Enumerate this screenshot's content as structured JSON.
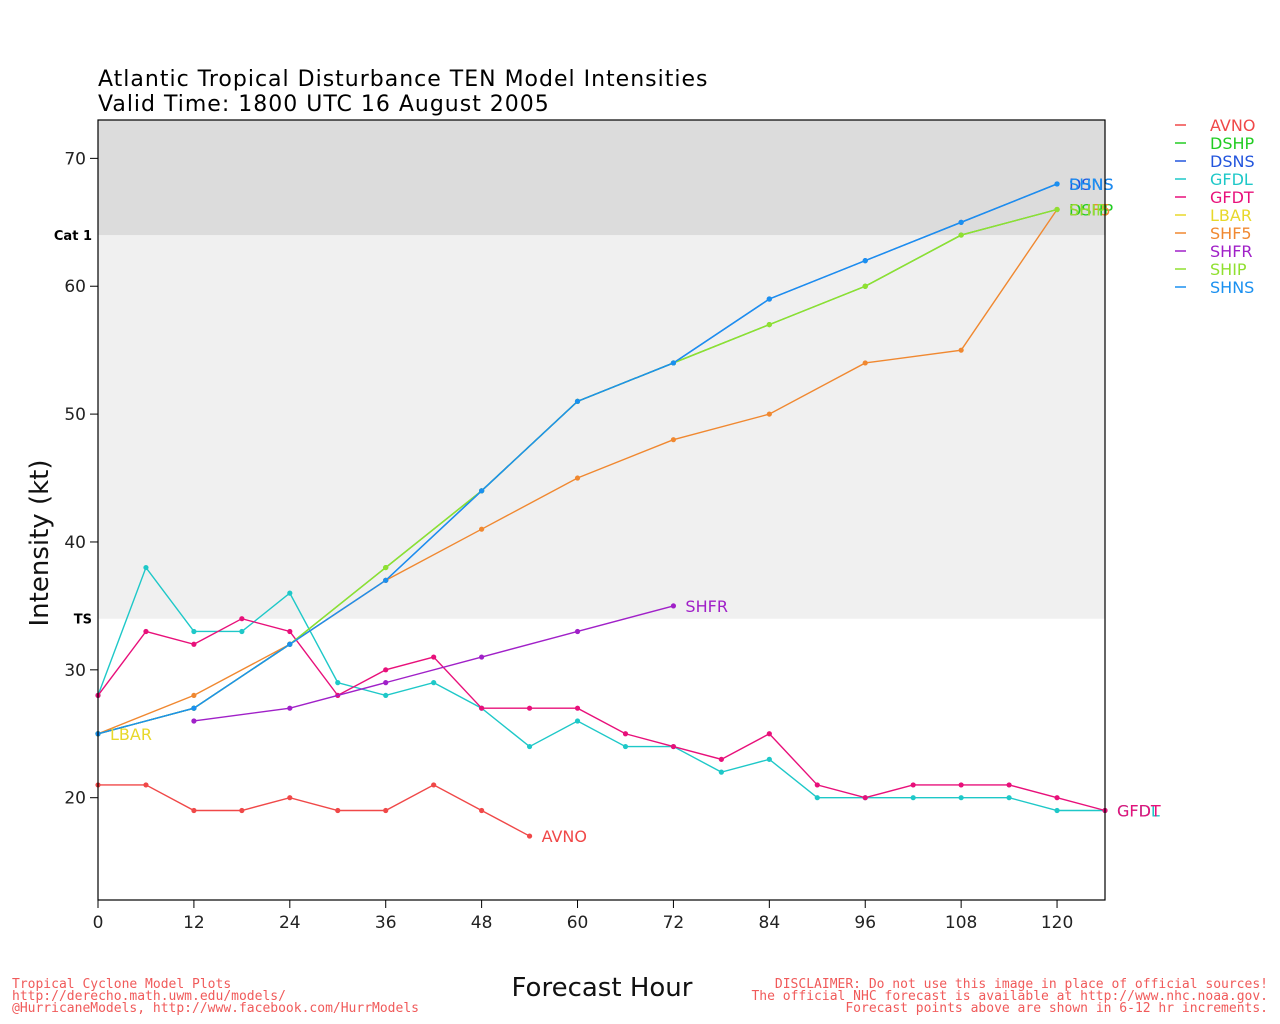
{
  "title_line1": "Atlantic Tropical Disturbance TEN Model Intensities",
  "title_line2": "Valid Time: 1800 UTC 16 August 2005",
  "footer_left": [
    "Tropical Cyclone Model Plots",
    "http://derecho.math.uwm.edu/models/",
    "@HurricaneModels, http://www.facebook.com/HurrModels"
  ],
  "footer_right": [
    "DISCLAIMER: Do not use this image in place of official sources!",
    "The official NHC forecast is available at http://www.nhc.noaa.gov.",
    "Forecast points above are shown in 6-12 hr increments."
  ],
  "colors": {
    "band_hurricane": "#dcdcdc",
    "band_ts": "#f0f0f0",
    "axis": "#000000"
  },
  "chart_data": {
    "type": "line",
    "xlabel": "Forecast Hour",
    "ylabel": "Intensity (kt)",
    "xlim": [
      0,
      126
    ],
    "ylim": [
      12,
      73
    ],
    "xticks": [
      0,
      12,
      24,
      36,
      48,
      60,
      72,
      84,
      96,
      108,
      120
    ],
    "yticks": [
      20,
      30,
      40,
      50,
      60,
      70
    ],
    "bands": [
      {
        "label": "TS",
        "from": 34,
        "to": 64,
        "color": "#f0f0f0"
      },
      {
        "label": "Cat 1",
        "from": 64,
        "to": 73,
        "color": "#dcdcdc"
      }
    ],
    "legend_position": "right",
    "series": [
      {
        "name": "AVNO",
        "color": "#f04848",
        "end_label": "AVNO",
        "x": [
          0,
          6,
          12,
          18,
          24,
          30,
          36,
          42,
          48,
          54
        ],
        "y": [
          21,
          21,
          19,
          19,
          20,
          19,
          19,
          21,
          19,
          17
        ]
      },
      {
        "name": "DSHP",
        "color": "#22cc22",
        "end_label": "DSHP",
        "x": [
          0,
          12,
          24,
          36,
          48,
          60,
          72,
          84,
          96,
          108,
          120
        ],
        "y": [
          25,
          27,
          32,
          38,
          44,
          51,
          54,
          57,
          60,
          64,
          66
        ]
      },
      {
        "name": "DSNS",
        "color": "#2255dd",
        "end_label": "DSNS",
        "x": [
          0,
          12,
          24,
          36,
          48,
          60,
          72,
          84,
          96,
          108,
          120
        ],
        "y": [
          25,
          27,
          32,
          37,
          44,
          51,
          54,
          59,
          62,
          65,
          68
        ]
      },
      {
        "name": "GFDL",
        "color": "#1ec8c8",
        "end_label": "GFDL",
        "x": [
          0,
          6,
          12,
          18,
          24,
          30,
          36,
          42,
          48,
          54,
          60,
          66,
          72,
          78,
          84,
          90,
          96,
          102,
          108,
          114,
          120,
          126
        ],
        "y": [
          28,
          38,
          33,
          33,
          36,
          29,
          28,
          29,
          27,
          24,
          26,
          24,
          24,
          22,
          23,
          20,
          20,
          20,
          20,
          20,
          19,
          19
        ]
      },
      {
        "name": "GFDT",
        "color": "#e8107a",
        "end_label": "GFDT",
        "x": [
          0,
          6,
          12,
          18,
          24,
          30,
          36,
          42,
          48,
          54,
          60,
          66,
          72,
          78,
          84,
          90,
          96,
          102,
          108,
          114,
          120,
          126
        ],
        "y": [
          28,
          33,
          32,
          34,
          33,
          28,
          30,
          31,
          27,
          27,
          27,
          25,
          24,
          23,
          25,
          21,
          20,
          21,
          21,
          21,
          20,
          19
        ]
      },
      {
        "name": "LBAR",
        "color": "#e8d82a",
        "end_label": "LBAR",
        "x": [
          0
        ],
        "y": [
          25
        ]
      },
      {
        "name": "SHF5",
        "color": "#f08830",
        "end_label": "SHF5",
        "x": [
          0,
          12,
          24,
          36,
          48,
          60,
          72,
          84,
          96,
          108,
          120
        ],
        "y": [
          25,
          28,
          32,
          37,
          41,
          45,
          48,
          50,
          54,
          55,
          66
        ]
      },
      {
        "name": "SHFR",
        "color": "#a020c8",
        "end_label": "SHFR",
        "x": [
          12,
          24,
          36,
          48,
          60,
          72
        ],
        "y": [
          26,
          27,
          29,
          31,
          33,
          35
        ]
      },
      {
        "name": "SHIP",
        "color": "#90e030",
        "end_label": "SHIP",
        "x": [
          0,
          12,
          24,
          36,
          48,
          60,
          72,
          84,
          96,
          108,
          120
        ],
        "y": [
          25,
          27,
          32,
          38,
          44,
          51,
          54,
          57,
          60,
          64,
          66
        ]
      },
      {
        "name": "SHNS",
        "color": "#1a90f0",
        "end_label": "SHNS",
        "x": [
          0,
          12,
          24,
          36,
          48,
          60,
          72,
          84,
          96,
          108,
          120
        ],
        "y": [
          25,
          27,
          32,
          37,
          44,
          51,
          54,
          59,
          62,
          65,
          68
        ]
      }
    ]
  }
}
